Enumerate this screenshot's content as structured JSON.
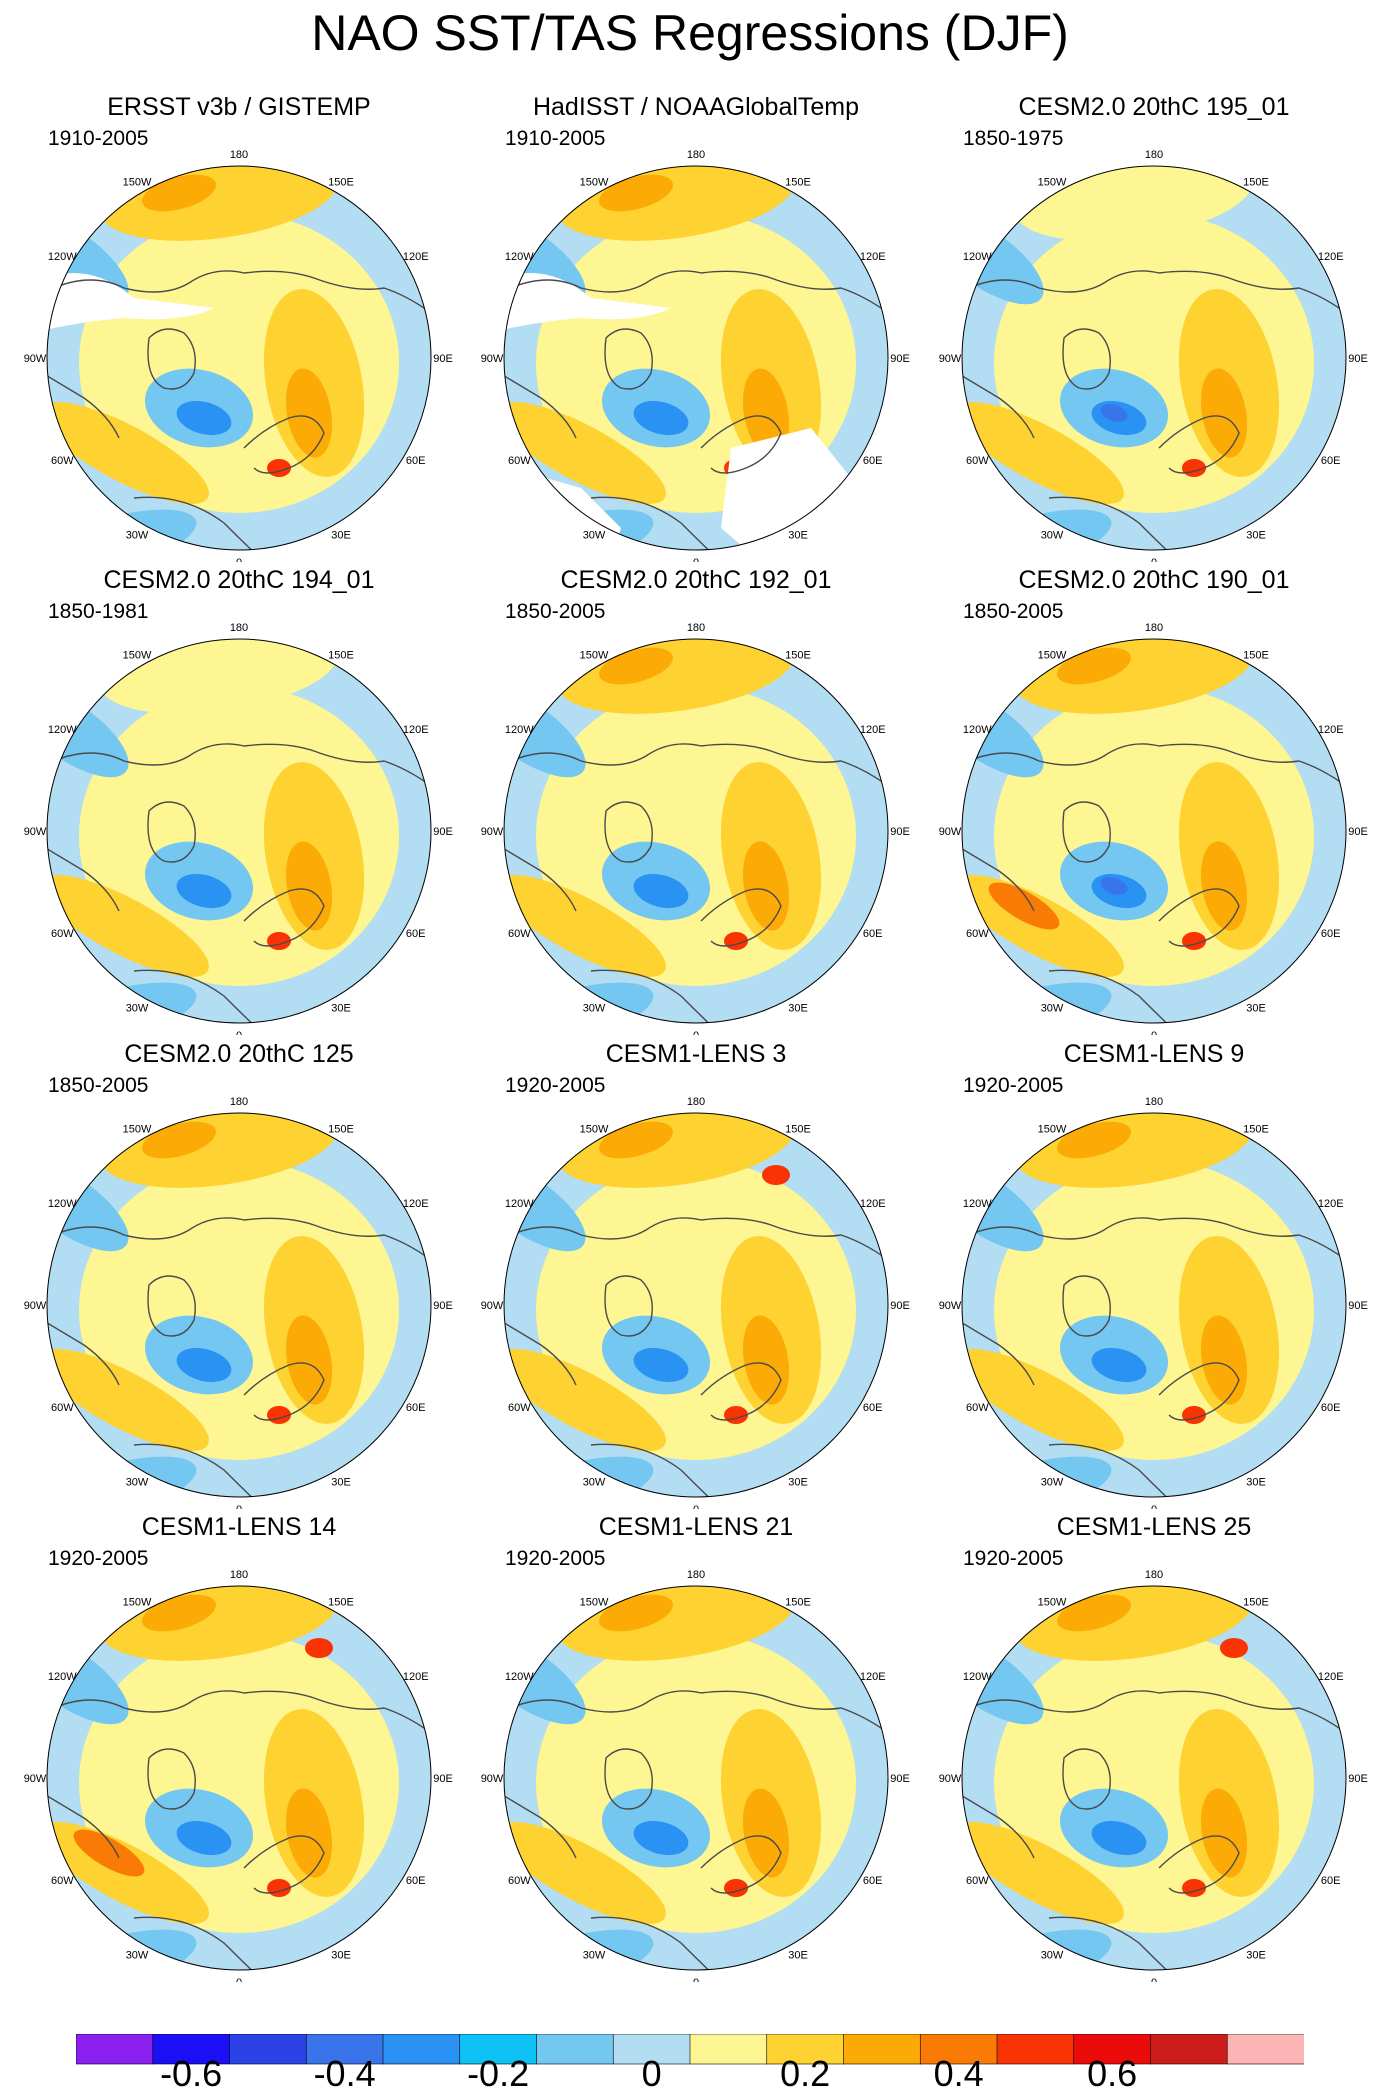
{
  "title": "NAO SST/TAS Regressions (DJF)",
  "lon_labels": [
    "180",
    "150E",
    "120E",
    "90E",
    "60E",
    "30E",
    "0",
    "30W",
    "60W",
    "90W",
    "120W",
    "150W"
  ],
  "panels": [
    {
      "title": "ERSST v3b / GISTEMP",
      "period": "1910-2005",
      "type": "obs"
    },
    {
      "title": "HadISST / NOAAGlobalTemp",
      "period": "1910-2005",
      "type": "obs"
    },
    {
      "title": "CESM2.0 20thC 195_01",
      "period": "1850-1975",
      "type": "model"
    },
    {
      "title": "CESM2.0 20thC 194_01",
      "period": "1850-1981",
      "type": "model"
    },
    {
      "title": "CESM2.0 20thC 192_01",
      "period": "1850-2005",
      "type": "model"
    },
    {
      "title": "CESM2.0 20thC 190_01",
      "period": "1850-2005",
      "type": "model"
    },
    {
      "title": "CESM2.0 20thC 125",
      "period": "1850-2005",
      "type": "model"
    },
    {
      "title": "CESM1-LENS 3",
      "period": "1920-2005",
      "type": "model"
    },
    {
      "title": "CESM1-LENS 9",
      "period": "1920-2005",
      "type": "model"
    },
    {
      "title": "CESM1-LENS 14",
      "period": "1920-2005",
      "type": "model"
    },
    {
      "title": "CESM1-LENS 21",
      "period": "1920-2005",
      "type": "model"
    },
    {
      "title": "CESM1-LENS 25",
      "period": "1920-2005",
      "type": "model"
    }
  ],
  "colorbar": {
    "colors": [
      "#8a1ff0",
      "#1a0ff5",
      "#2a42e6",
      "#3a74ea",
      "#2a92f2",
      "#0ec2f5",
      "#74c7f1",
      "#b2ddf2",
      "#fdf692",
      "#fdd231",
      "#fcaa05",
      "#fa7a06",
      "#fa3304",
      "#ec0b0b",
      "#cc1c1c",
      "#fdb4b4"
    ],
    "tick_labels": [
      "-0.6",
      "-0.4",
      "-0.2",
      "0",
      "0.2",
      "0.4",
      "0.6"
    ]
  },
  "palette": {
    "blue_light": "#b2ddf2",
    "blue_mid": "#74c7f1",
    "cyan": "#0ec2f5",
    "blue": "#2a92f2",
    "blue_dark": "#3a74ea",
    "yellow": "#fdf692",
    "gold": "#fdd231",
    "orange": "#fcaa05",
    "dark_orange": "#fa7a06",
    "red": "#fa3304",
    "missing": "#ffffff",
    "coast": "#4a4a4a"
  }
}
